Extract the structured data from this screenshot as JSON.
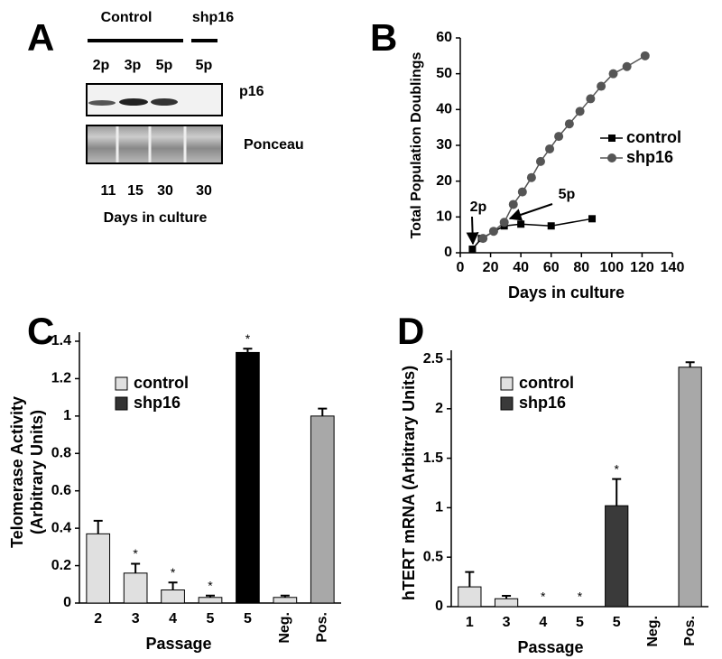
{
  "panel_a": {
    "letter": "A",
    "groups": [
      "Control",
      "shp16"
    ],
    "lanes": [
      "2p",
      "3p",
      "5p",
      "5p"
    ],
    "rows": [
      "p16",
      "Ponceau"
    ],
    "days": [
      11,
      15,
      30,
      30
    ],
    "xlabel": "Days in culture"
  },
  "chart_data": [
    {
      "type": "line",
      "letter": "B",
      "xlabel": "Days in culture",
      "ylabel": "Total Population Doublings",
      "xlim": [
        0,
        140
      ],
      "xticks": [
        0,
        20,
        40,
        60,
        80,
        100,
        120,
        140
      ],
      "ylim": [
        0,
        60
      ],
      "yticks": [
        0,
        10,
        20,
        30,
        40,
        50,
        60
      ],
      "series": [
        {
          "name": "control",
          "color": "#000000",
          "marker": "square",
          "x": [
            8,
            14,
            29,
            40,
            60,
            87
          ],
          "values": [
            1,
            4,
            7.5,
            8,
            7.5,
            9.5
          ]
        },
        {
          "name": "shp16",
          "color": "#555555",
          "marker": "circle",
          "x": [
            15,
            22,
            29,
            35,
            41,
            47,
            53,
            59,
            65,
            72,
            79,
            86,
            93,
            101,
            110,
            122
          ],
          "values": [
            4,
            6,
            8.5,
            13.5,
            17,
            21,
            25.5,
            29,
            32.5,
            36,
            39.5,
            43,
            46.5,
            50,
            52,
            55
          ]
        }
      ],
      "annotations": [
        "2p",
        "5p"
      ]
    },
    {
      "type": "bar",
      "letter": "C",
      "xlabel": "Passage",
      "ylabel": [
        "Telomerase Activity",
        "(Arbitrary Units)"
      ],
      "categories": [
        "2",
        "3",
        "4",
        "5",
        "5",
        "Neg.",
        "Pos."
      ],
      "values": [
        0.37,
        0.16,
        0.07,
        0.03,
        1.34,
        0.03,
        1.0
      ],
      "errors": [
        0.07,
        0.05,
        0.04,
        0.01,
        0.02,
        0.01,
        0.04
      ],
      "colors": [
        "#e0e0e0",
        "#e0e0e0",
        "#e0e0e0",
        "#e0e0e0",
        "#000000",
        "#e0e0e0",
        "#a8a8a8"
      ],
      "ylim": [
        0,
        1.4
      ],
      "yticks": [
        0,
        0.2,
        0.4,
        0.6,
        0.8,
        1,
        1.2,
        1.4
      ],
      "legend": [
        {
          "name": "control",
          "color": "#e0e0e0"
        },
        {
          "name": "shp16",
          "color": "#333333"
        }
      ],
      "significance": [
        {
          "index": 1,
          "label": "*"
        },
        {
          "index": 2,
          "label": "*"
        },
        {
          "index": 3,
          "label": "*"
        },
        {
          "index": 4,
          "label": "*"
        }
      ]
    },
    {
      "type": "bar",
      "letter": "D",
      "xlabel": "Passage",
      "ylabel": [
        "hTERT mRNA (Arbitrary Units)"
      ],
      "categories": [
        "1",
        "3",
        "4",
        "5",
        "5",
        "Neg.",
        "Pos."
      ],
      "values": [
        0.2,
        0.08,
        0,
        0,
        1.02,
        0,
        2.42
      ],
      "errors": [
        0.15,
        0.03,
        0,
        0,
        0.27,
        0,
        0.05
      ],
      "colors": [
        "#e0e0e0",
        "#e0e0e0",
        "#e0e0e0",
        "#e0e0e0",
        "#3a3a3a",
        "#e0e0e0",
        "#a8a8a8"
      ],
      "ylim": [
        0,
        2.5
      ],
      "yticks": [
        0,
        0.5,
        1,
        1.5,
        2,
        2.5
      ],
      "legend": [
        {
          "name": "control",
          "color": "#e0e0e0"
        },
        {
          "name": "shp16",
          "color": "#3a3a3a"
        }
      ],
      "significance": [
        {
          "index": 2,
          "label": "*"
        },
        {
          "index": 3,
          "label": "*"
        },
        {
          "index": 4,
          "label": "*"
        }
      ]
    }
  ]
}
